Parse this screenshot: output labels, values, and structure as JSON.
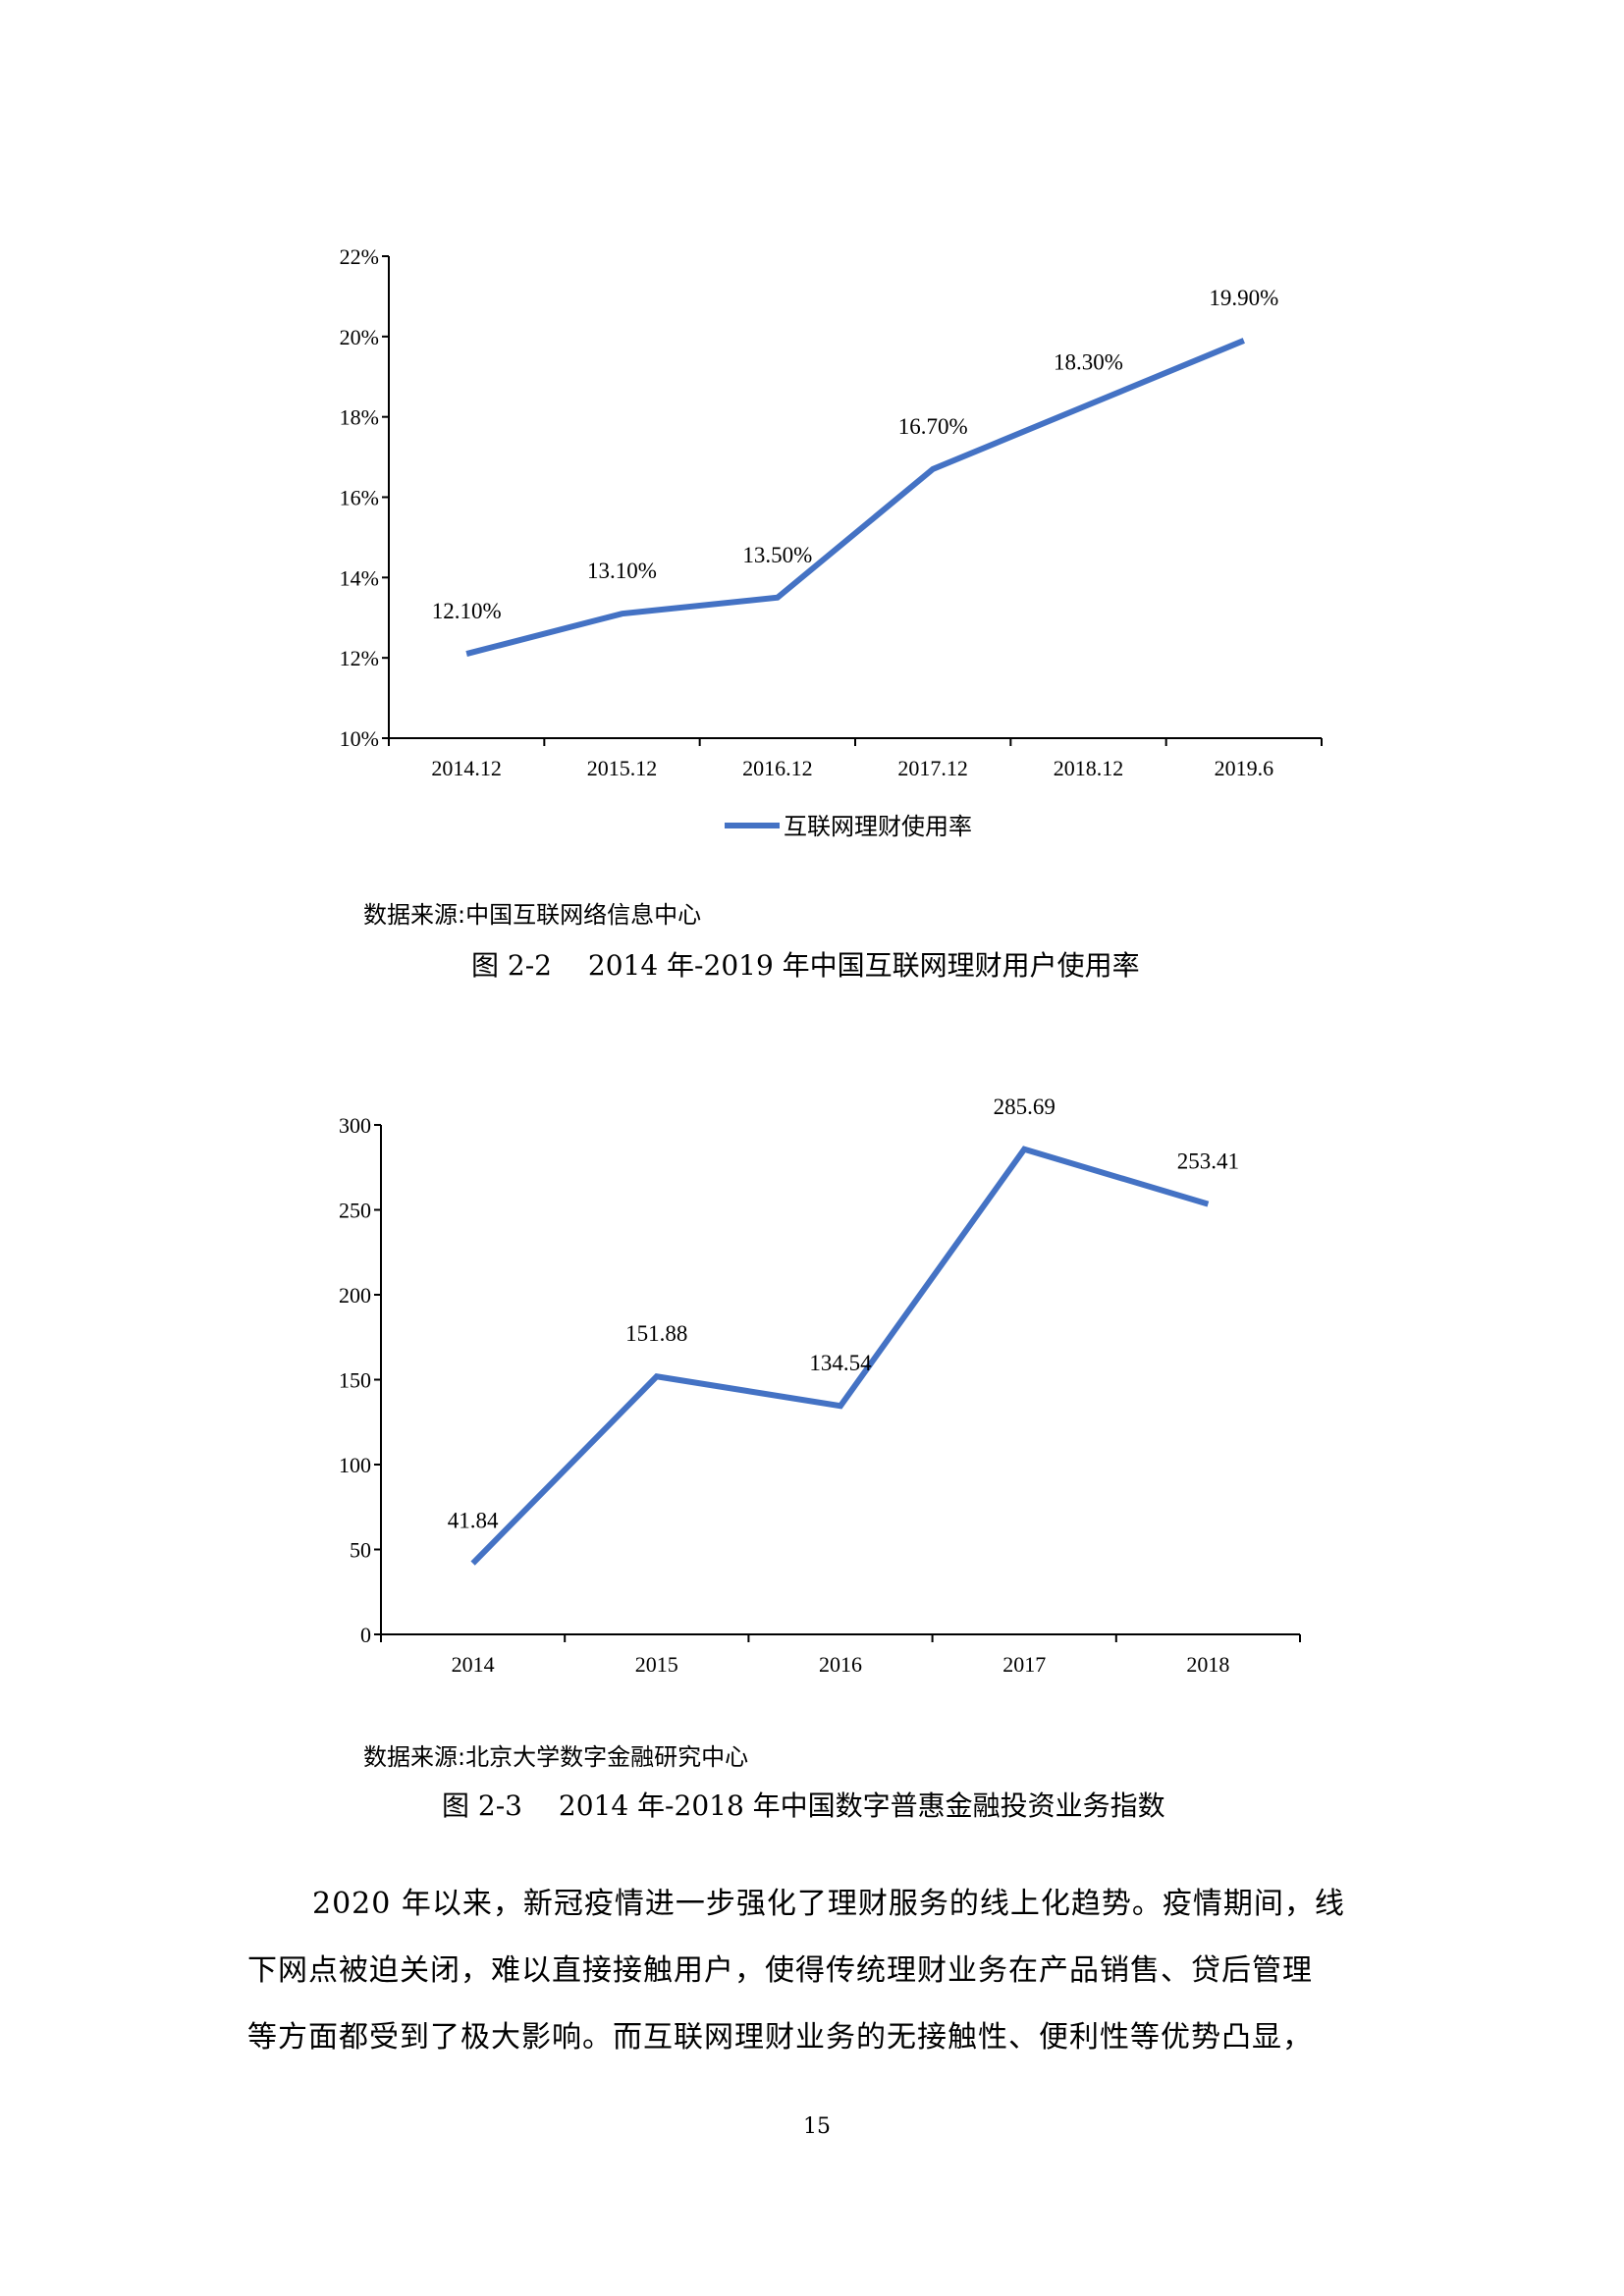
{
  "chart_data": [
    {
      "type": "line",
      "title": "图 2-2 2014 年-2019 年中国互联网理财用户使用率",
      "categories": [
        "2014.12",
        "2015.12",
        "2016.12",
        "2017.12",
        "2018.12",
        "2019.6"
      ],
      "series": [
        {
          "name": "互联网理财使用率",
          "values": [
            12.1,
            13.1,
            13.5,
            16.7,
            18.3,
            19.9
          ],
          "labels": [
            "12.10%",
            "13.10%",
            "13.50%",
            "16.70%",
            "18.30%",
            "19.90%"
          ]
        }
      ],
      "yticks": [
        "10%",
        "12%",
        "14%",
        "16%",
        "18%",
        "20%",
        "22%"
      ],
      "ylim": [
        10,
        22
      ],
      "xlabel": "",
      "ylabel": "",
      "grid": false,
      "legend_position": "bottom",
      "line_color": "#4472C4"
    },
    {
      "type": "line",
      "title": "图 2-3 2014 年-2018 年中国数字普惠金融投资业务指数",
      "categories": [
        "2014",
        "2015",
        "2016",
        "2017",
        "2018"
      ],
      "series": [
        {
          "name": "投资业务指数",
          "values": [
            41.84,
            151.88,
            134.54,
            285.69,
            253.41
          ],
          "labels": [
            "41.84",
            "151.88",
            "134.54",
            "285.69",
            "253.41"
          ]
        }
      ],
      "yticks": [
        "0",
        "50",
        "100",
        "150",
        "200",
        "250",
        "300"
      ],
      "ylim": [
        0,
        300
      ],
      "xlabel": "",
      "ylabel": "",
      "grid": false,
      "legend_position": "none",
      "line_color": "#4472C4"
    }
  ],
  "figure1": {
    "legend_label": "互联网理财使用率",
    "source": "数据来源:中国互联网络信息中心",
    "caption": "图 2-2　 2014 年-2019 年中国互联网理财用户使用率"
  },
  "figure2": {
    "source": "数据来源:北京大学数字金融研究中心",
    "caption": "图 2-3　 2014 年-2018 年中国数字普惠金融投资业务指数"
  },
  "paragraph": {
    "lines": [
      "2020 年以来，新冠疫情进一步强化了理财服务的线上化趋势。疫情期间，线",
      "下网点被迫关闭，难以直接接触用户，使得传统理财业务在产品销售、贷后管理",
      "等方面都受到了极大影响。而互联网理财业务的无接触性、便利性等优势凸显，"
    ]
  },
  "page_number": "15"
}
